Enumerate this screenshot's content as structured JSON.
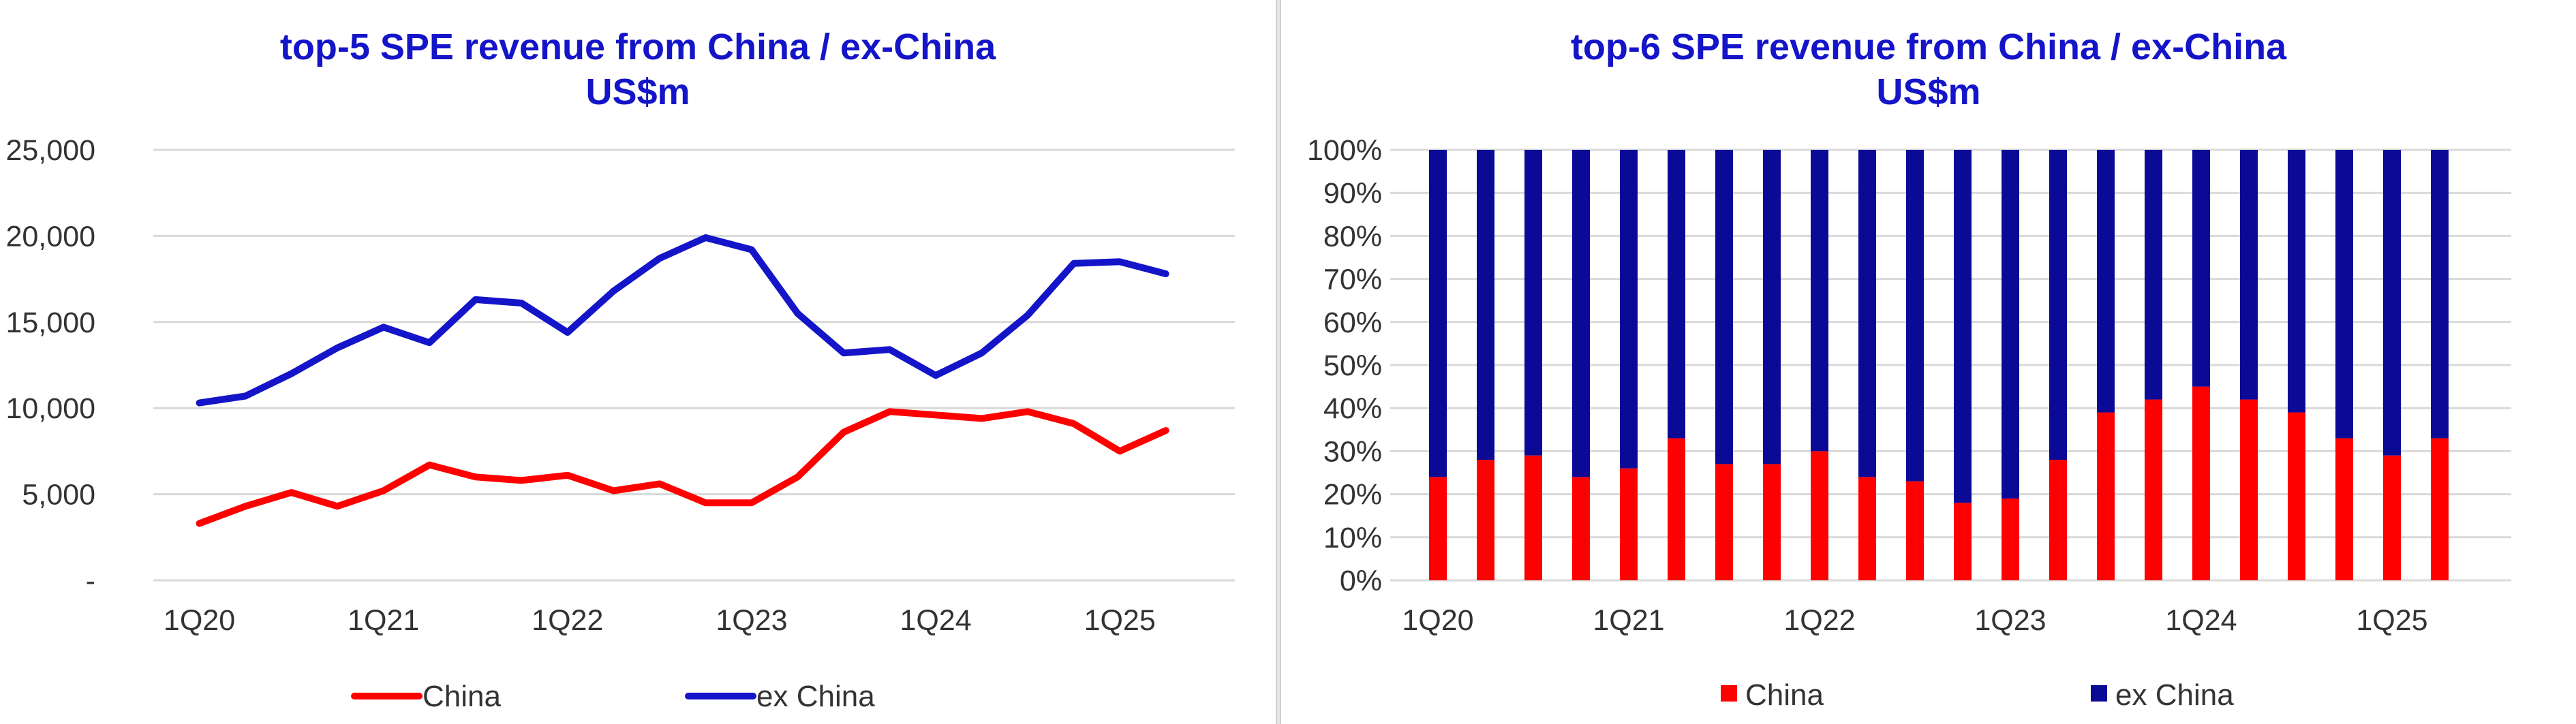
{
  "chart_data": [
    {
      "type": "line",
      "title": "top-5 SPE revenue from China / ex-China",
      "subtitle": "US$m",
      "x": [
        "1Q20",
        "2Q20",
        "3Q20",
        "4Q20",
        "1Q21",
        "2Q21",
        "3Q21",
        "4Q21",
        "1Q22",
        "2Q22",
        "3Q22",
        "4Q22",
        "1Q23",
        "2Q23",
        "3Q23",
        "4Q23",
        "1Q24",
        "2Q24",
        "3Q24",
        "4Q24",
        "1Q25",
        "2Q25"
      ],
      "x_tick_labels": [
        "1Q20",
        "1Q21",
        "1Q22",
        "1Q23",
        "1Q24",
        "1Q25"
      ],
      "y_tick_labels": [
        "-",
        "5,000",
        "10,000",
        "15,000",
        "20,000",
        "25,000"
      ],
      "ylim": [
        0,
        25000
      ],
      "grid": true,
      "legend_position": "bottom",
      "series": [
        {
          "name": "China",
          "color": "#ff0000",
          "values": [
            3300,
            4300,
            5100,
            4300,
            5200,
            6700,
            6000,
            5800,
            6100,
            5200,
            5600,
            4500,
            4500,
            6000,
            8600,
            9800,
            9600,
            9400,
            9800,
            9100,
            7500,
            8700
          ]
        },
        {
          "name": "ex China",
          "color": "#1414c8",
          "values": [
            10300,
            10700,
            12000,
            13500,
            14700,
            13800,
            16300,
            16100,
            14400,
            16800,
            18700,
            19900,
            19200,
            15500,
            13200,
            13400,
            11900,
            13200,
            15400,
            18400,
            18500,
            17800
          ]
        }
      ]
    },
    {
      "type": "bar",
      "stacked": true,
      "title": "top-6 SPE revenue from China / ex-China",
      "subtitle": "US$m",
      "categories": [
        "1Q20",
        "2Q20",
        "3Q20",
        "4Q20",
        "1Q21",
        "2Q21",
        "3Q21",
        "4Q21",
        "1Q22",
        "2Q22",
        "3Q22",
        "4Q22",
        "1Q23",
        "2Q23",
        "3Q23",
        "4Q23",
        "1Q24",
        "2Q24",
        "3Q24",
        "4Q24",
        "1Q25",
        "2Q25"
      ],
      "x_tick_labels": [
        "1Q20",
        "1Q21",
        "1Q22",
        "1Q23",
        "1Q24",
        "1Q25"
      ],
      "y_tick_labels": [
        "0%",
        "10%",
        "20%",
        "30%",
        "40%",
        "50%",
        "60%",
        "70%",
        "80%",
        "90%",
        "100%"
      ],
      "ylim": [
        0,
        100
      ],
      "grid": true,
      "legend_position": "bottom",
      "series": [
        {
          "name": "China",
          "color": "#ff0000",
          "values": [
            24,
            28,
            29,
            24,
            26,
            33,
            27,
            27,
            30,
            24,
            23,
            18,
            19,
            28,
            39,
            42,
            45,
            42,
            39,
            33,
            29,
            33
          ]
        },
        {
          "name": "ex China",
          "color": "#0a0a96",
          "values": [
            76,
            72,
            71,
            76,
            74,
            67,
            73,
            73,
            70,
            76,
            77,
            82,
            81,
            72,
            61,
            58,
            55,
            58,
            61,
            67,
            71,
            67
          ]
        }
      ]
    }
  ]
}
